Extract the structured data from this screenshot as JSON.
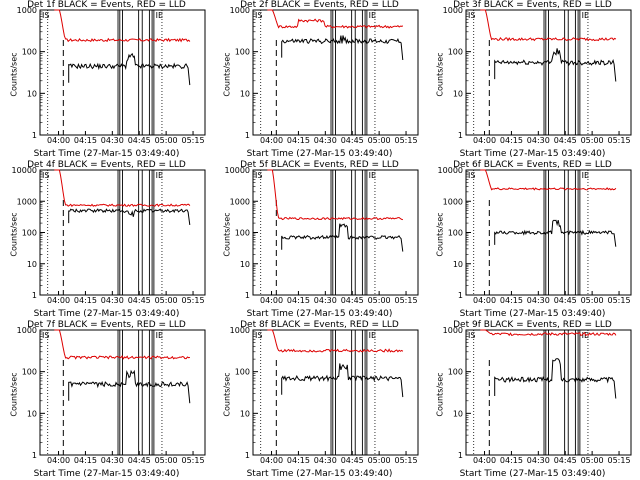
{
  "chart_data": [
    {
      "type": "line",
      "title": "Det 1f BLACK = Events, RED = LLD",
      "xlabel": "Start Time (27-Mar-15 03:49:40)",
      "ylabel": "Counts/sec",
      "yscale": "log",
      "ylim": [
        1,
        1000
      ],
      "yticks": [
        "1",
        "10",
        "100",
        "1000"
      ],
      "xticks": [
        "04:00",
        "04:15",
        "04:30",
        "04:45",
        "05:00",
        "05:15"
      ],
      "red_level": 190,
      "black_level": 45,
      "red_start": 1000,
      "peak": 90
    },
    {
      "type": "line",
      "title": "Det 2f BLACK = Events, RED = LLD",
      "xlabel": "Start Time (27-Mar-15 03:49:40)",
      "ylabel": "Counts/sec",
      "yscale": "log",
      "ylim": [
        1,
        1000
      ],
      "yticks": [
        "1",
        "10",
        "100",
        "1000"
      ],
      "xticks": [
        "04:00",
        "04:15",
        "04:30",
        "04:45",
        "05:00",
        "05:15"
      ],
      "red_level": 400,
      "black_level": 180,
      "red_start": 1000,
      "peak": 260
    },
    {
      "type": "line",
      "title": "Det 3f BLACK = Events, RED = LLD",
      "xlabel": "Start Time (27-Mar-15 03:49:40)",
      "ylabel": "Counts/sec",
      "yscale": "log",
      "ylim": [
        1,
        1000
      ],
      "yticks": [
        "1",
        "10",
        "100",
        "1000"
      ],
      "xticks": [
        "04:00",
        "04:15",
        "04:30",
        "04:45",
        "05:00",
        "05:15"
      ],
      "red_level": 200,
      "black_level": 55,
      "red_start": 1000,
      "peak": 130
    },
    {
      "type": "line",
      "title": "Det 4f BLACK = Events, RED = LLD",
      "xlabel": "Start Time (27-Mar-15 03:49:40)",
      "ylabel": "Counts/sec",
      "yscale": "log",
      "ylim": [
        1,
        10000
      ],
      "yticks": [
        "1",
        "10",
        "100",
        "1000",
        "10000"
      ],
      "xticks": [
        "04:00",
        "04:15",
        "04:30",
        "04:45",
        "05:00",
        "05:15"
      ],
      "red_level": 750,
      "black_level": 500,
      "red_start": 10000,
      "peak": 500
    },
    {
      "type": "line",
      "title": "Det 5f BLACK = Events, RED = LLD",
      "xlabel": "Start Time (27-Mar-15 03:49:40)",
      "ylabel": "Counts/sec",
      "yscale": "log",
      "ylim": [
        1,
        10000
      ],
      "yticks": [
        "1",
        "10",
        "100",
        "1000",
        "10000"
      ],
      "xticks": [
        "04:00",
        "04:15",
        "04:30",
        "04:45",
        "05:00",
        "05:15"
      ],
      "red_level": 280,
      "black_level": 70,
      "red_start": 10000,
      "peak": 200
    },
    {
      "type": "line",
      "title": "Det 6f BLACK = Events, RED = LLD",
      "xlabel": "Start Time (27-Mar-15 03:49:40)",
      "ylabel": "Counts/sec",
      "yscale": "log",
      "ylim": [
        1,
        10000
      ],
      "yticks": [
        "1",
        "10",
        "100",
        "1000",
        "10000"
      ],
      "xticks": [
        "04:00",
        "04:15",
        "04:30",
        "04:45",
        "05:00",
        "05:15"
      ],
      "red_level": 2500,
      "black_level": 100,
      "red_start": 10000,
      "peak": 250
    },
    {
      "type": "line",
      "title": "Det 7f BLACK = Events, RED = LLD",
      "xlabel": "Start Time (27-Mar-15 03:49:40)",
      "ylabel": "Counts/sec",
      "yscale": "log",
      "ylim": [
        1,
        1000
      ],
      "yticks": [
        "1",
        "10",
        "100",
        "1000"
      ],
      "xticks": [
        "04:00",
        "04:15",
        "04:30",
        "04:45",
        "05:00",
        "05:15"
      ],
      "red_level": 220,
      "black_level": 50,
      "red_start": 1000,
      "peak": 110
    },
    {
      "type": "line",
      "title": "Det 8f BLACK = Events, RED = LLD",
      "xlabel": "Start Time (27-Mar-15 03:49:40)",
      "ylabel": "Counts/sec",
      "yscale": "log",
      "ylim": [
        1,
        1000
      ],
      "yticks": [
        "1",
        "10",
        "100",
        "1000"
      ],
      "xticks": [
        "04:00",
        "04:15",
        "04:30",
        "04:45",
        "05:00",
        "05:15"
      ],
      "red_level": 320,
      "black_level": 70,
      "red_start": 1000,
      "peak": 180
    },
    {
      "type": "line",
      "title": "Det 9f BLACK = Events, RED = LLD",
      "xlabel": "Start Time (27-Mar-15 03:49:40)",
      "ylabel": "Counts/sec",
      "yscale": "log",
      "ylim": [
        1,
        1000
      ],
      "yticks": [
        "1",
        "10",
        "100",
        "1000"
      ],
      "xticks": [
        "04:00",
        "04:15",
        "04:30",
        "04:45",
        "05:00",
        "05:15"
      ],
      "red_level": 800,
      "black_level": 65,
      "red_start": 1000,
      "peak": 220
    }
  ],
  "colors": {
    "events": "#000000",
    "lld": "#dd0000",
    "axes": "#000000"
  },
  "markers": {
    "corner_label": "IS",
    "end_label": "IE"
  }
}
